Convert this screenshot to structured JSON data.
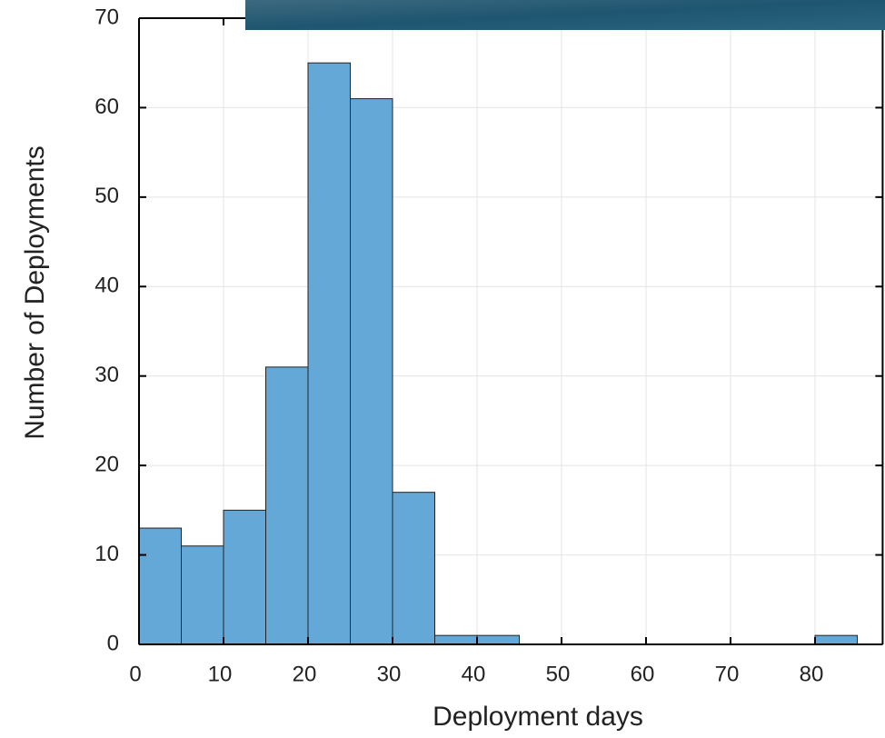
{
  "chart_data": {
    "type": "histogram",
    "xlabel": "Deployment days",
    "ylabel": "Number of Deployments",
    "bins": [
      0,
      5,
      10,
      15,
      20,
      25,
      30,
      35,
      40,
      45,
      50,
      55,
      60,
      65,
      70,
      75,
      80,
      85
    ],
    "values": [
      13,
      11,
      15,
      31,
      65,
      61,
      17,
      1,
      1,
      0,
      0,
      0,
      0,
      0,
      0,
      0,
      1
    ],
    "color": "#64a8d8",
    "xlim": [
      0,
      88
    ],
    "ylim": [
      0,
      70
    ],
    "xticks": [
      0,
      10,
      20,
      30,
      40,
      50,
      60,
      70,
      80
    ],
    "yticks": [
      0,
      10,
      20,
      30,
      40,
      50,
      60,
      70
    ],
    "grid": true
  }
}
